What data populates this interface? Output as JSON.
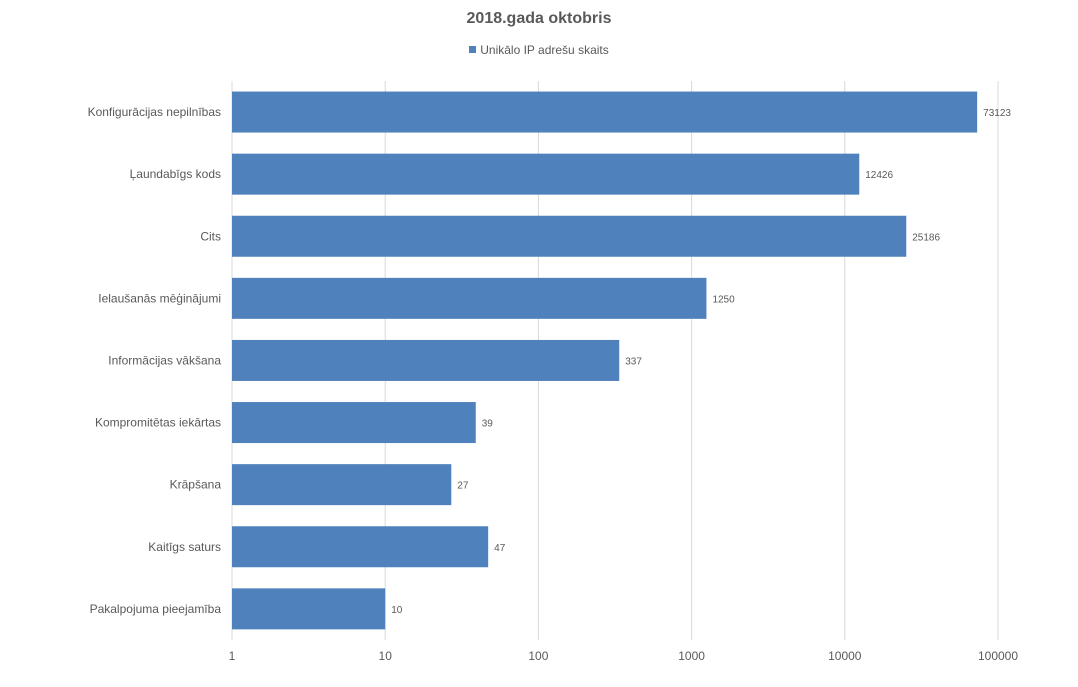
{
  "chart_data": {
    "type": "bar",
    "orientation": "horizontal",
    "title": "2018.gada oktobris",
    "xscale": "log",
    "xlim": [
      1,
      100000
    ],
    "x_ticks": [
      "1",
      "10",
      "100",
      "1000",
      "10000",
      "100000"
    ],
    "x_tick_values": [
      1,
      10,
      100,
      1000,
      10000,
      100000
    ],
    "grid": "vertical",
    "legend_position": "top",
    "categories": [
      "Konfigurācijas nepilnības",
      "Ļaundabīgs kods",
      "Cits",
      "Ielaušanās mēģinājumi",
      "Informācijas vākšana",
      "Kompromitētas iekārtas",
      "Krāpšana",
      "Kaitīgs saturs",
      "Pakalpojuma pieejamība"
    ],
    "series": [
      {
        "name": "Unikālo IP adrešu skaits",
        "values": [
          73123,
          12426,
          25186,
          1250,
          337,
          39,
          27,
          47,
          10
        ],
        "color": "#4f81bd"
      }
    ],
    "data_labels": [
      "73123",
      "12426",
      "25186",
      "1250",
      "337",
      "39",
      "27",
      "47",
      "10"
    ]
  },
  "colors": {
    "bar": "#4f81bd",
    "text": "#595959",
    "grid": "#d9d9d9"
  }
}
